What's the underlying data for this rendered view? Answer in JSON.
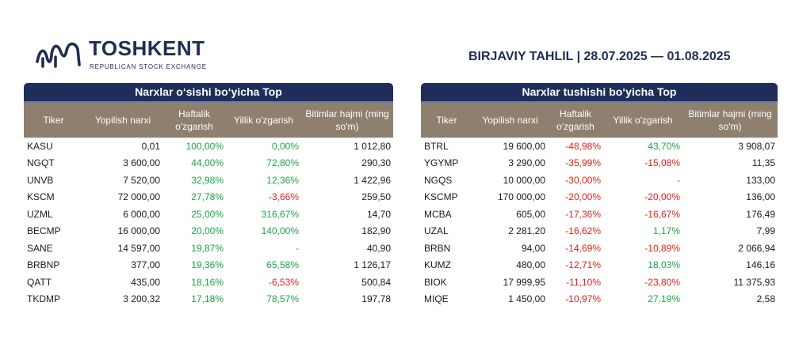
{
  "header": {
    "brand": "TOSHKENT",
    "brand_sub": "REPUBLICAN STOCK EXCHANGE",
    "report_title": "BIRJAVIY TAHLIL | 28.07.2025 — 01.08.2025"
  },
  "colors": {
    "navy": "#1f2d5a",
    "header_brown": "#8e7f6f",
    "positive": "#1aa34a",
    "negative": "#e0201c"
  },
  "gainers": {
    "title": "Narxlar o‘sishi bo‘yicha Top",
    "columns": [
      "Tiker",
      "Yopilish narxi",
      "Haftalik o'zgarish",
      "Yillik o'zgarish",
      "Bitimlar hajmi (ming so'm)"
    ],
    "rows": [
      {
        "ticker": "KASU",
        "close": "0,01",
        "weekly": "100,00%",
        "yearly": "0,00%",
        "volume": "1 012,80"
      },
      {
        "ticker": "NGQT",
        "close": "3 600,00",
        "weekly": "44,00%",
        "yearly": "72,80%",
        "volume": "290,30"
      },
      {
        "ticker": "UNVB",
        "close": "7 520,00",
        "weekly": "32,98%",
        "yearly": "12,36%",
        "volume": "1 422,96"
      },
      {
        "ticker": "KSCM",
        "close": "72 000,00",
        "weekly": "27,78%",
        "yearly": "-3,66%",
        "volume": "259,50"
      },
      {
        "ticker": "UZML",
        "close": "6 000,00",
        "weekly": "25,00%",
        "yearly": "316,67%",
        "volume": "14,70"
      },
      {
        "ticker": "BECMP",
        "close": "16 000,00",
        "weekly": "20,00%",
        "yearly": "140,00%",
        "volume": "182,90"
      },
      {
        "ticker": "SANE",
        "close": "14 597,00",
        "weekly": "19,87%",
        "yearly": "-",
        "volume": "40,90"
      },
      {
        "ticker": "BRBNP",
        "close": "377,00",
        "weekly": "19,36%",
        "yearly": "65,58%",
        "volume": "1 126,17"
      },
      {
        "ticker": "QATT",
        "close": "435,00",
        "weekly": "18,16%",
        "yearly": "-6,53%",
        "volume": "500,84"
      },
      {
        "ticker": "TKDMP",
        "close": "3 200,32",
        "weekly": "17,18%",
        "yearly": "78,57%",
        "volume": "197,78"
      }
    ]
  },
  "losers": {
    "title": "Narxlar tushishi bo‘yicha Top",
    "columns": [
      "Tiker",
      "Yopilish narxi",
      "Haftalik o'zgarish",
      "Yillik o'zgarish",
      "Bitimlar hajmi (ming so'm)"
    ],
    "rows": [
      {
        "ticker": "BTRL",
        "close": "19 600,00",
        "weekly": "-48,98%",
        "yearly": "43,70%",
        "volume": "3 908,07"
      },
      {
        "ticker": "YGYMP",
        "close": "3 290,00",
        "weekly": "-35,99%",
        "yearly": "-15,08%",
        "volume": "11,35"
      },
      {
        "ticker": "NGQS",
        "close": "10 000,00",
        "weekly": "-30,00%",
        "yearly": "-",
        "volume": "133,00"
      },
      {
        "ticker": "KSCMP",
        "close": "170 000,00",
        "weekly": "-20,00%",
        "yearly": "-20,00%",
        "volume": "136,00"
      },
      {
        "ticker": "MCBA",
        "close": "605,00",
        "weekly": "-17,36%",
        "yearly": "-16,67%",
        "volume": "176,49"
      },
      {
        "ticker": "UZAL",
        "close": "2 281,20",
        "weekly": "-16,62%",
        "yearly": "1,17%",
        "volume": "7,99"
      },
      {
        "ticker": "BRBN",
        "close": "94,00",
        "weekly": "-14,69%",
        "yearly": "-10,89%",
        "volume": "2 066,94"
      },
      {
        "ticker": "KUMZ",
        "close": "480,00",
        "weekly": "-12,71%",
        "yearly": "18,03%",
        "volume": "146,16"
      },
      {
        "ticker": "BIOK",
        "close": "17 999,95",
        "weekly": "-11,10%",
        "yearly": "-23,80%",
        "volume": "11 375,93"
      },
      {
        "ticker": "MIQE",
        "close": "1 450,00",
        "weekly": "-10,97%",
        "yearly": "27,19%",
        "volume": "2,58"
      }
    ]
  }
}
